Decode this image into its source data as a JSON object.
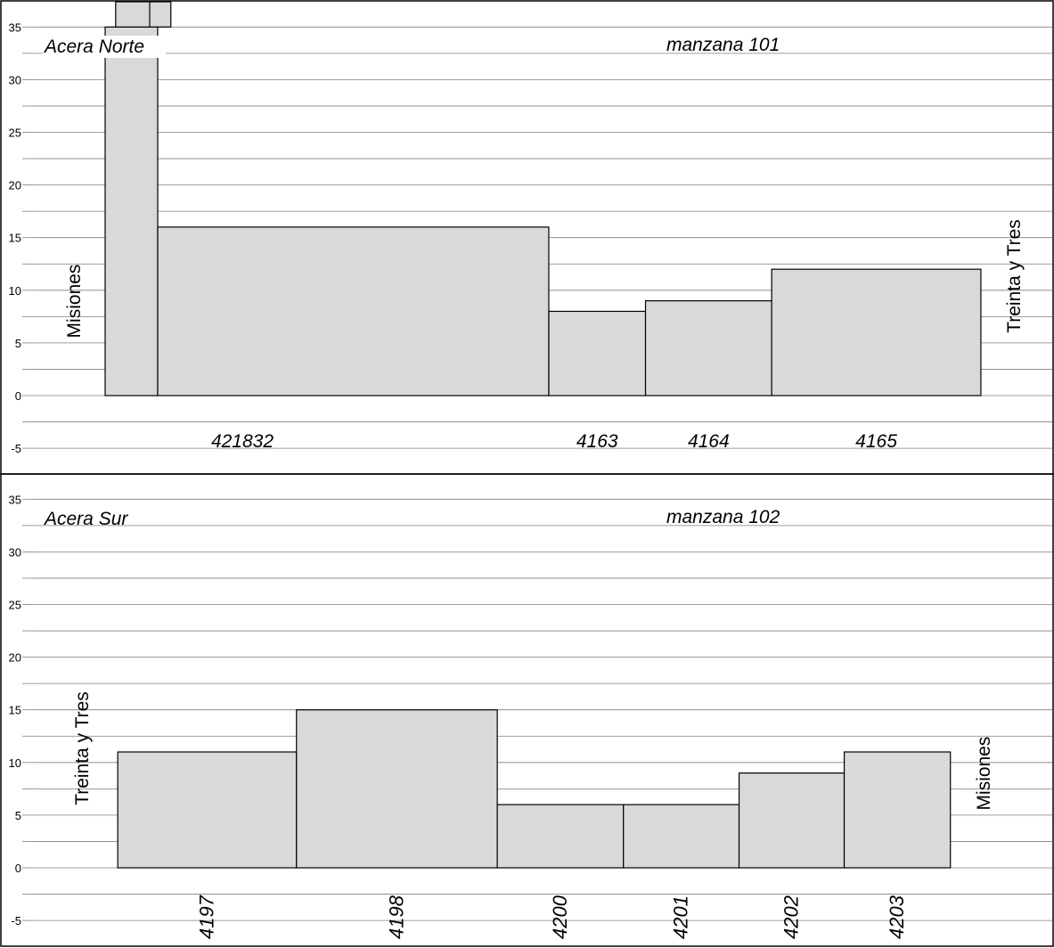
{
  "colors": {
    "background": "#ffffff",
    "grid": "#7f7f7f",
    "bar_fill": "#d9d9d9",
    "bar_stroke": "#000000",
    "frame": "#000000",
    "text": "#000000"
  },
  "chart_data": [
    {
      "type": "bar",
      "panel": "top",
      "corner_label": "Acera Norte",
      "block_label": "manzana 101",
      "left_street": "Misiones",
      "right_street": "Treinta y Tres",
      "ylim": [
        -7.5,
        37.5
      ],
      "y_ticks": [
        "35",
        "30",
        "25",
        "20",
        "15",
        "10",
        "5",
        "0",
        "-5"
      ],
      "grid": true,
      "lot_axis": "horizontal distance along the sidewalk (unlabeled)",
      "lots": [
        {
          "x_start": 0,
          "x_end": 5.0,
          "height": 35,
          "top_extends_beyond_axis": true,
          "label": ""
        },
        {
          "x_start": 5.0,
          "x_end": 42.2,
          "height": 16,
          "label": "421832"
        },
        {
          "x_start": 42.2,
          "x_end": 51.4,
          "height": 8,
          "label": "4163"
        },
        {
          "x_start": 51.4,
          "x_end": 63.4,
          "height": 9,
          "label": "4164"
        },
        {
          "x_start": 63.4,
          "x_end": 83.3,
          "height": 12,
          "label": "4165"
        }
      ]
    },
    {
      "type": "bar",
      "panel": "bottom",
      "corner_label": "Acera Sur",
      "block_label": "manzana 102",
      "left_street": "Treinta y Tres",
      "right_street": "Misiones",
      "ylim": [
        -7.5,
        37.5
      ],
      "y_ticks": [
        "35",
        "30",
        "25",
        "20",
        "15",
        "10",
        "5",
        "0",
        "-5"
      ],
      "grid": true,
      "lots": [
        {
          "x_start": 1.2,
          "x_end": 18.2,
          "height": 11,
          "label": "4197"
        },
        {
          "x_start": 18.2,
          "x_end": 37.3,
          "height": 15,
          "label": "4198"
        },
        {
          "x_start": 37.3,
          "x_end": 49.3,
          "height": 6,
          "label": "4200"
        },
        {
          "x_start": 49.3,
          "x_end": 60.3,
          "height": 6,
          "label": "4201"
        },
        {
          "x_start": 60.3,
          "x_end": 70.3,
          "height": 9,
          "label": "4202"
        },
        {
          "x_start": 70.3,
          "x_end": 80.4,
          "height": 11,
          "label": "4203"
        }
      ]
    }
  ]
}
